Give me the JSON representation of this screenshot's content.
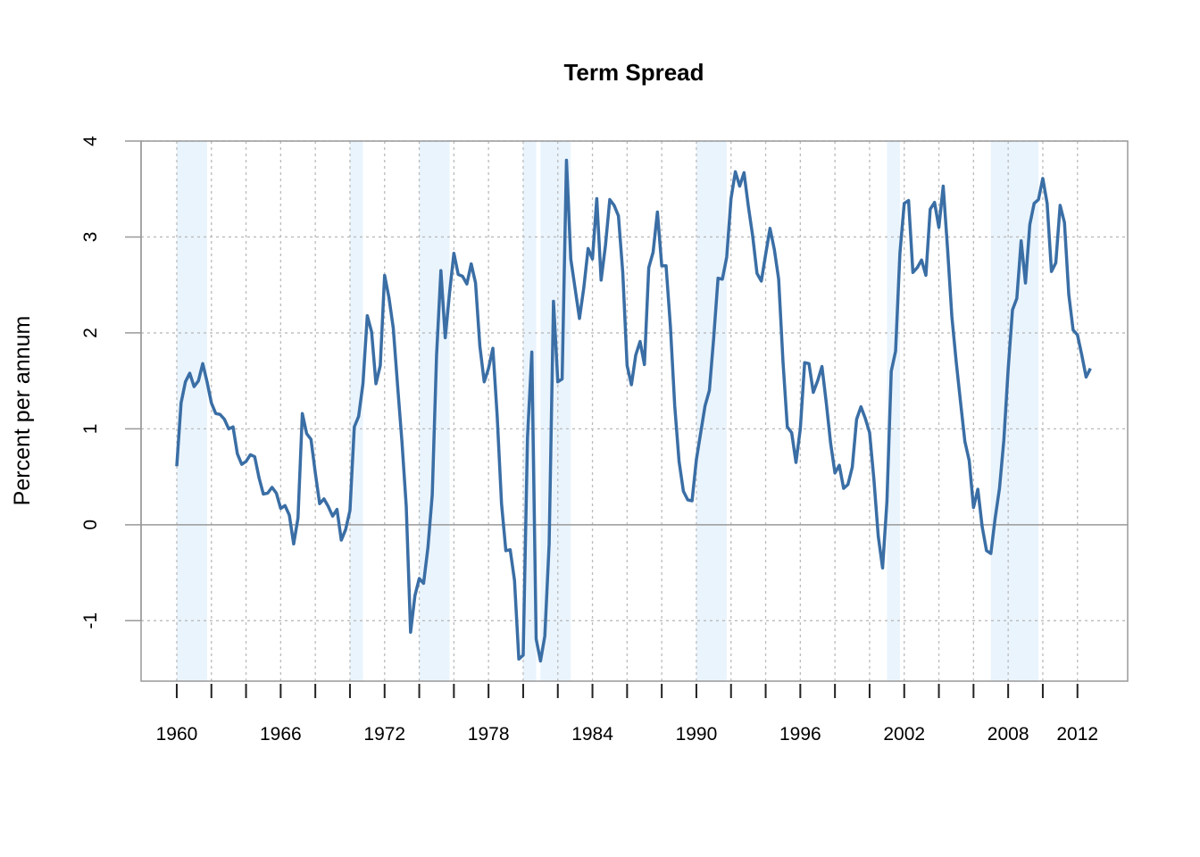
{
  "chart_data": {
    "type": "line",
    "title": "Term Spread",
    "y_label": "Percent per annum",
    "color": "#3a6ea5",
    "shade_color": "#eaf4fd",
    "shaded_periods": [
      [
        1960.0,
        1961.75
      ],
      [
        1970.0,
        1970.75
      ],
      [
        1974.0,
        1975.75
      ],
      [
        1980.0,
        1980.75
      ],
      [
        1981.0,
        1982.75
      ],
      [
        1990.0,
        1991.75
      ],
      [
        2001.0,
        2001.75
      ],
      [
        2007.0,
        2009.75
      ]
    ],
    "x": [
      1960,
      1960.25,
      1960.5,
      1960.75,
      1961,
      1961.25,
      1961.5,
      1961.75,
      1962,
      1962.25,
      1962.5,
      1962.75,
      1963,
      1963.25,
      1963.5,
      1963.75,
      1964,
      1964.25,
      1964.5,
      1964.75,
      1965,
      1965.25,
      1965.5,
      1965.75,
      1966,
      1966.25,
      1966.5,
      1966.75,
      1967,
      1967.25,
      1967.5,
      1967.75,
      1968,
      1968.25,
      1968.5,
      1968.75,
      1969,
      1969.25,
      1969.5,
      1969.75,
      1970,
      1970.25,
      1970.5,
      1970.75,
      1971,
      1971.25,
      1971.5,
      1971.75,
      1972,
      1972.25,
      1972.5,
      1972.75,
      1973,
      1973.25,
      1973.5,
      1973.75,
      1974,
      1974.25,
      1974.5,
      1974.75,
      1975,
      1975.25,
      1975.5,
      1975.75,
      1976,
      1976.25,
      1976.5,
      1976.75,
      1977,
      1977.25,
      1977.5,
      1977.75,
      1978,
      1978.25,
      1978.5,
      1978.75,
      1979,
      1979.25,
      1979.5,
      1979.75,
      1980,
      1980.25,
      1980.5,
      1980.75,
      1981,
      1981.25,
      1981.5,
      1981.75,
      1982,
      1982.25,
      1982.5,
      1982.75,
      1983,
      1983.25,
      1983.5,
      1983.75,
      1984,
      1984.25,
      1984.5,
      1984.75,
      1985,
      1985.25,
      1985.5,
      1985.75,
      1986,
      1986.25,
      1986.5,
      1986.75,
      1987,
      1987.25,
      1987.5,
      1987.75,
      1988,
      1988.25,
      1988.5,
      1988.75,
      1989,
      1989.25,
      1989.5,
      1989.75,
      1990,
      1990.25,
      1990.5,
      1990.75,
      1991,
      1991.25,
      1991.5,
      1991.75,
      1992,
      1992.25,
      1992.5,
      1992.75,
      1993,
      1993.25,
      1993.5,
      1993.75,
      1994,
      1994.25,
      1994.5,
      1994.75,
      1995,
      1995.25,
      1995.5,
      1995.75,
      1996,
      1996.25,
      1996.5,
      1996.75,
      1997,
      1997.25,
      1997.5,
      1997.75,
      1998,
      1998.25,
      1998.5,
      1998.75,
      1999,
      1999.25,
      1999.5,
      1999.75,
      2000,
      2000.25,
      2000.5,
      2000.75,
      2001,
      2001.25,
      2001.5,
      2001.75,
      2002,
      2002.25,
      2002.5,
      2002.75,
      2003,
      2003.25,
      2003.5,
      2003.75,
      2004,
      2004.25,
      2004.5,
      2004.75,
      2005,
      2005.25,
      2005.5,
      2005.75,
      2006,
      2006.25,
      2006.5,
      2006.75,
      2007,
      2007.25,
      2007.5,
      2007.75,
      2008,
      2008.25,
      2008.5,
      2008.75,
      2009,
      2009.25,
      2009.5,
      2009.75,
      2010,
      2010.25,
      2010.5,
      2010.75,
      2011,
      2011.25,
      2011.5,
      2011.75,
      2012,
      2012.25,
      2012.5,
      2012.75
    ],
    "values": [
      0.61,
      1.27,
      1.49,
      1.58,
      1.44,
      1.5,
      1.68,
      1.49,
      1.27,
      1.16,
      1.15,
      1.1,
      1.0,
      1.02,
      0.74,
      0.63,
      0.66,
      0.73,
      0.71,
      0.49,
      0.32,
      0.33,
      0.39,
      0.33,
      0.17,
      0.2,
      0.1,
      -0.2,
      0.07,
      1.16,
      0.95,
      0.89,
      0.54,
      0.22,
      0.27,
      0.19,
      0.09,
      0.16,
      -0.16,
      -0.05,
      0.15,
      1.02,
      1.13,
      1.47,
      2.18,
      2.01,
      1.47,
      1.66,
      2.6,
      2.37,
      2.05,
      1.45,
      0.87,
      0.19,
      -1.12,
      -0.74,
      -0.56,
      -0.61,
      -0.24,
      0.31,
      1.77,
      2.65,
      1.95,
      2.42,
      2.83,
      2.61,
      2.59,
      2.51,
      2.72,
      2.52,
      1.86,
      1.49,
      1.63,
      1.84,
      1.13,
      0.22,
      -0.27,
      -0.26,
      -0.58,
      -1.4,
      -1.36,
      0.91,
      1.8,
      -1.19,
      -1.42,
      -1.16,
      -0.2,
      2.33,
      1.49,
      1.52,
      3.8,
      2.77,
      2.46,
      2.15,
      2.47,
      2.88,
      2.77,
      3.4,
      2.55,
      2.91,
      3.39,
      3.33,
      3.22,
      2.63,
      1.66,
      1.46,
      1.77,
      1.91,
      1.67,
      2.68,
      2.84,
      3.26,
      2.7,
      2.7,
      2.07,
      1.24,
      0.66,
      0.35,
      0.26,
      0.25,
      0.68,
      0.96,
      1.24,
      1.4,
      1.95,
      2.57,
      2.56,
      2.79,
      3.4,
      3.68,
      3.53,
      3.67,
      3.32,
      3.01,
      2.62,
      2.54,
      2.82,
      3.09,
      2.87,
      2.56,
      1.7,
      1.02,
      0.96,
      0.65,
      1.0,
      1.69,
      1.68,
      1.38,
      1.5,
      1.65,
      1.27,
      0.85,
      0.54,
      0.62,
      0.38,
      0.42,
      0.6,
      1.1,
      1.23,
      1.11,
      0.96,
      0.47,
      -0.12,
      -0.45,
      0.24,
      1.6,
      1.81,
      2.83,
      3.35,
      3.38,
      2.63,
      2.68,
      2.76,
      2.6,
      3.29,
      3.36,
      3.1,
      3.53,
      2.88,
      2.17,
      1.7,
      1.28,
      0.87,
      0.67,
      0.18,
      0.37,
      -0.02,
      -0.27,
      -0.3,
      0.07,
      0.38,
      0.88,
      1.62,
      2.24,
      2.36,
      2.96,
      2.52,
      3.13,
      3.35,
      3.39,
      3.61,
      3.35,
      2.64,
      2.73,
      3.33,
      3.15,
      2.4,
      2.03,
      1.98,
      1.77,
      1.54,
      1.63
    ],
    "xlim": [
      1957.94,
      2014.9
    ],
    "ylim": [
      -1.63,
      4
    ],
    "xticks": [
      1960,
      1966,
      1972,
      1978,
      1984,
      1990,
      1996,
      2002,
      2008,
      2012
    ],
    "x_minor_ticks": [
      1960,
      1962,
      1964,
      1966,
      1968,
      1970,
      1972,
      1974,
      1976,
      1978,
      1980,
      1982,
      1984,
      1986,
      1988,
      1990,
      1992,
      1994,
      1996,
      1998,
      2000,
      2002,
      2004,
      2006,
      2008,
      2010,
      2012
    ],
    "yticks": [
      -1,
      0,
      1,
      2,
      3,
      4
    ],
    "grid": true
  }
}
